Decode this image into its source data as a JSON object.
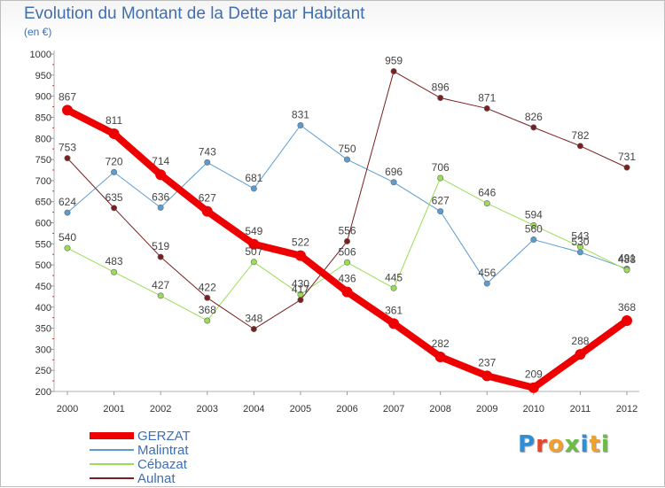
{
  "title": "Evolution du Montant de la Dette par Habitant",
  "subtitle": "(en €)",
  "brand": {
    "text": "Proxiti",
    "colors": [
      "#2f8ed6",
      "#e8452c",
      "#f0a12a",
      "#6cbd45",
      "#2f8ed6",
      "#f0a12a",
      "#6cbd45"
    ]
  },
  "chart_data": {
    "type": "line",
    "title": "Evolution du Montant de la Dette par Habitant",
    "ylabel": "(en €)",
    "xlabel": "",
    "x": [
      2000,
      2001,
      2002,
      2003,
      2004,
      2005,
      2006,
      2007,
      2008,
      2009,
      2010,
      2011,
      2012
    ],
    "ylim": [
      200,
      1000
    ],
    "yticks": [
      200,
      250,
      300,
      350,
      400,
      450,
      500,
      550,
      600,
      650,
      700,
      750,
      800,
      850,
      900,
      950,
      1000
    ],
    "grid": false,
    "legend_position": "bottom-left",
    "series": [
      {
        "name": "GERZAT",
        "color": "#ee0000",
        "width": 8,
        "values": [
          867,
          811,
          714,
          627,
          549,
          522,
          436,
          361,
          282,
          237,
          209,
          288,
          368
        ],
        "labels": [
          "867",
          "811",
          "714",
          "627",
          "549",
          "522",
          "436",
          "361",
          "282",
          "237",
          "209",
          "288",
          "368"
        ]
      },
      {
        "name": "Malintrat",
        "color": "#5b9bd0",
        "width": 1,
        "values": [
          624,
          720,
          636,
          743,
          681,
          831,
          750,
          696,
          627,
          456,
          560,
          530,
          491
        ],
        "labels": [
          "624",
          "720",
          "636",
          "743",
          "681",
          "831",
          "750",
          "696",
          "627",
          "456",
          "560",
          "530",
          "491"
        ]
      },
      {
        "name": "Cébazat",
        "color": "#99dd55",
        "width": 1,
        "values": [
          540,
          483,
          427,
          368,
          507,
          430,
          506,
          445,
          706,
          646,
          594,
          543,
          488
        ],
        "labels": [
          "540",
          "483",
          "427",
          "368",
          "507",
          "430",
          "506",
          "445",
          "706",
          "646",
          "594",
          "543",
          "488"
        ]
      },
      {
        "name": "Aulnat",
        "color": "#7a1f1f",
        "width": 1,
        "values": [
          753,
          635,
          519,
          422,
          348,
          417,
          556,
          959,
          896,
          871,
          826,
          782,
          731
        ],
        "labels": [
          "753",
          "635",
          "519",
          "422",
          "348",
          "417",
          "556",
          "959",
          "896",
          "871",
          "826",
          "782",
          "731"
        ]
      }
    ]
  }
}
